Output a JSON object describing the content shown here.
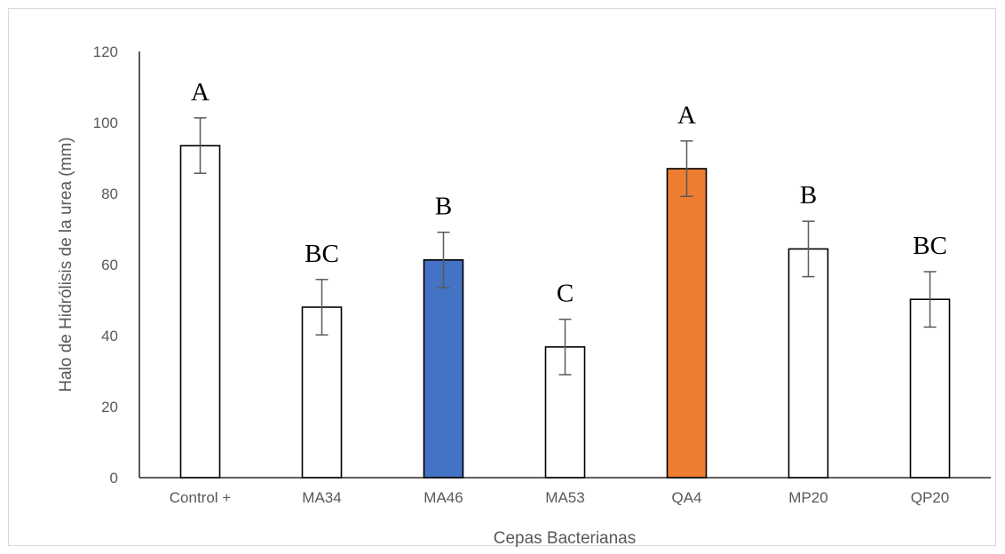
{
  "chart_data": {
    "type": "bar",
    "title": "",
    "xlabel": "Cepas Bacterianas",
    "ylabel": "Halo de Hidrólisis de la urea (mm)",
    "ylim": [
      0,
      120
    ],
    "yticks": [
      0,
      20,
      40,
      60,
      80,
      100,
      120
    ],
    "grid": false,
    "categories": [
      "Control +",
      "MA34",
      "MA46",
      "MA53",
      "QA4",
      "MP20",
      "QP20"
    ],
    "values": [
      93.5,
      48,
      61.3,
      36.8,
      87,
      64.4,
      50.2
    ],
    "errors": [
      7.8,
      7.8,
      7.8,
      7.8,
      7.8,
      7.8,
      7.8
    ],
    "significance_labels": [
      "A",
      "BC",
      "B",
      "C",
      "A",
      "B",
      "BC"
    ],
    "bar_colors": [
      "#ffffff",
      "#ffffff",
      "#4472c4",
      "#ffffff",
      "#ed7d31",
      "#ffffff",
      "#ffffff"
    ]
  }
}
